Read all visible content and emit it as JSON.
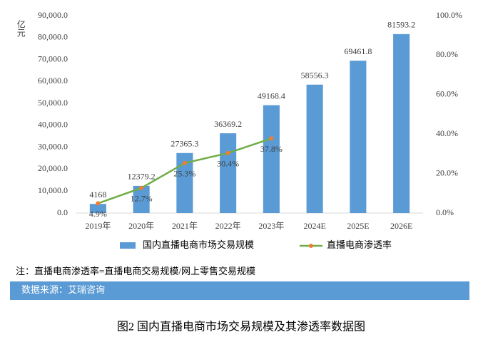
{
  "chart_data": {
    "type": "bar_line",
    "y_label": "亿元",
    "categories": [
      "2019年",
      "2020年",
      "2021年",
      "2022年",
      "2023年",
      "2024E",
      "2025E",
      "2026E"
    ],
    "series": [
      {
        "name": "国内直播电商市场交易规模",
        "type": "bar",
        "color": "#5b9bd5",
        "values": [
          4168,
          12379.2,
          27365.3,
          36369.2,
          49168.4,
          58556.3,
          69461.8,
          81593.2
        ]
      },
      {
        "name": "直播电商渗透率",
        "type": "line",
        "axis": "y2",
        "color": "#70ad47",
        "marker_color": "#ed7d31",
        "values": [
          4.9,
          12.7,
          25.3,
          30.4,
          37.8,
          null,
          null,
          null
        ],
        "value_labels": [
          "4.9%",
          "12.7%",
          "25.3%",
          "30.4%",
          "37.8%",
          null,
          null,
          null
        ]
      }
    ],
    "ylim": [
      0,
      90000
    ],
    "yticks": [
      {
        "value": 0,
        "label": "0.0"
      },
      {
        "value": 10000,
        "label": "10,000.0"
      },
      {
        "value": 20000,
        "label": "20,000.0"
      },
      {
        "value": 30000,
        "label": "30,000.0"
      },
      {
        "value": 40000,
        "label": "40,000.0"
      },
      {
        "value": 50000,
        "label": "50,000.0"
      },
      {
        "value": 60000,
        "label": "60,000.0"
      },
      {
        "value": 70000,
        "label": "70,000.0"
      },
      {
        "value": 80000,
        "label": "80,000.0"
      },
      {
        "value": 90000,
        "label": "90,000.0"
      }
    ],
    "y2lim": [
      0,
      100
    ],
    "y2ticks": [
      {
        "value": 0,
        "label": "0.0%"
      },
      {
        "value": 20,
        "label": "20.0%"
      },
      {
        "value": 40,
        "label": "40.0%"
      },
      {
        "value": 60,
        "label": "60.0%"
      },
      {
        "value": 80,
        "label": "80.0%"
      },
      {
        "value": 100,
        "label": "100.0%"
      }
    ],
    "grid": false,
    "legend": "bottom",
    "note": "注：直播电商渗透率=直播电商交易规模/网上零售交易规模",
    "source": "数据来源：艾瑞咨询",
    "caption": "图2 国内直播电商市场交易规模及其渗透率数据图"
  }
}
